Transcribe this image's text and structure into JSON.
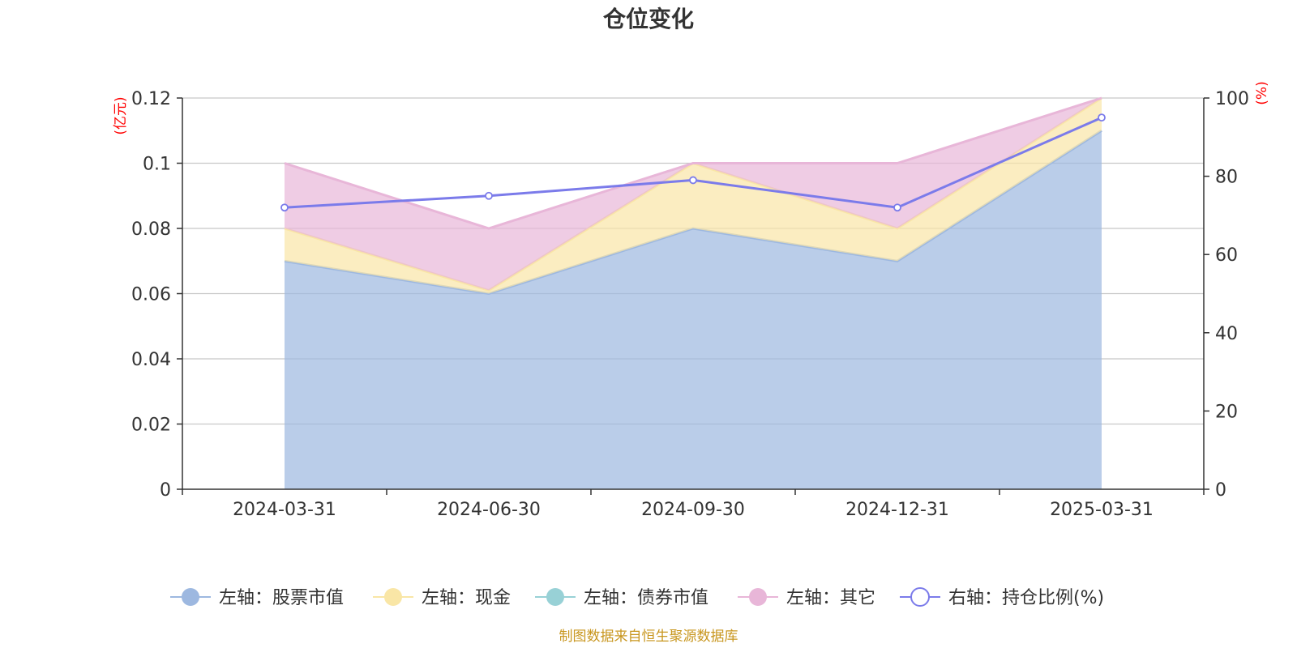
{
  "chart_data": {
    "type": "area",
    "title": "仓位变化",
    "categories": [
      "2024-03-31",
      "2024-06-30",
      "2024-09-30",
      "2024-12-31",
      "2025-03-31"
    ],
    "left_axis": {
      "unit": "(亿元)",
      "ylim": [
        0,
        0.12
      ],
      "ticks": [
        "0",
        "0.02",
        "0.04",
        "0.06",
        "0.08",
        "0.1",
        "0.12"
      ]
    },
    "right_axis": {
      "unit": "(%)",
      "ylim": [
        0,
        100
      ],
      "ticks": [
        "0",
        "20",
        "40",
        "60",
        "80",
        "100"
      ]
    },
    "stacked": true,
    "series": [
      {
        "name": "左轴：股票市值",
        "type": "area",
        "axis": "left",
        "color": "#9db8e0",
        "values": [
          0.07,
          0.06,
          0.08,
          0.07,
          0.11
        ]
      },
      {
        "name": "左轴：现金",
        "type": "area",
        "axis": "left",
        "color": "#f9e6a6",
        "values": [
          0.01,
          0.001,
          0.02,
          0.01,
          0.01
        ]
      },
      {
        "name": "左轴：债券市值",
        "type": "area",
        "axis": "left",
        "color": "#98d1d6",
        "values": [
          0,
          0,
          0,
          0,
          0
        ]
      },
      {
        "name": "左轴：其它",
        "type": "area",
        "axis": "left",
        "color": "#e8b6d8",
        "values": [
          0.02,
          0.019,
          0.0,
          0.02,
          0.0
        ]
      },
      {
        "name": "右轴：持仓比例(%)",
        "type": "line",
        "axis": "right",
        "color": "#7b7bea",
        "values": [
          72,
          75,
          79,
          72,
          95
        ]
      }
    ],
    "grid": true,
    "legend_position": "bottom"
  },
  "source": "制图数据来自恒生聚源数据库"
}
